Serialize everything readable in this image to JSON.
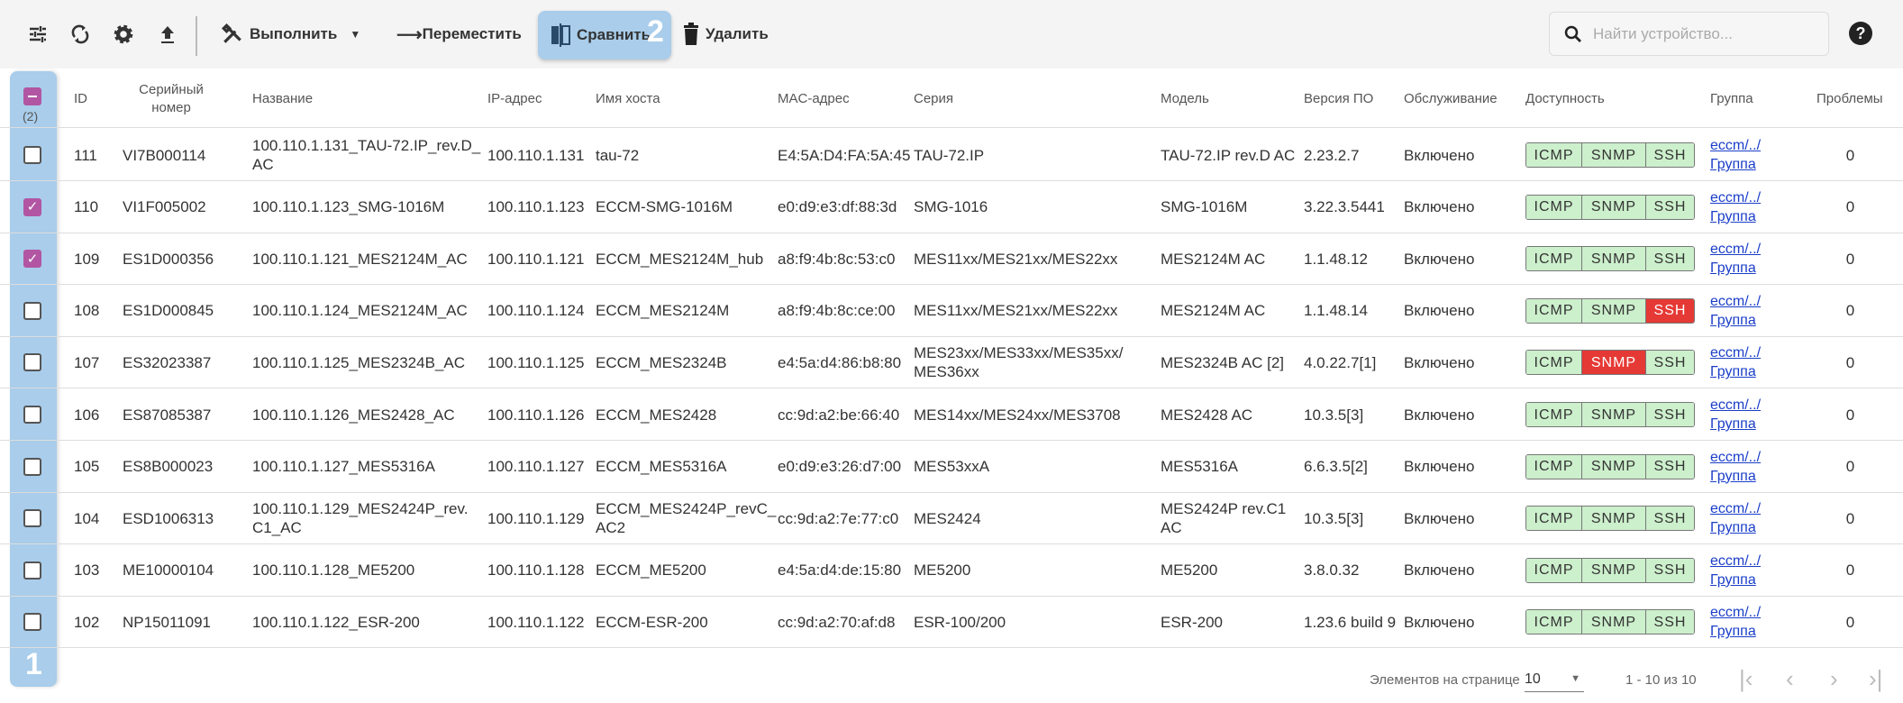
{
  "toolbar": {
    "run_label": "Выполнить",
    "move_label": "Переместить",
    "compare_label": "Сравнить",
    "delete_label": "Удалить",
    "search_placeholder": "Найти устройство...",
    "annotation_compare": "2"
  },
  "columns": {
    "id": "ID",
    "serial": "Серийный номер",
    "name": "Название",
    "ip": "IP-адрес",
    "host": "Имя хоста",
    "mac": "MAC-адрес",
    "series": "Серия",
    "model": "Модель",
    "version": "Версия ПО",
    "service": "Обслуживание",
    "access": "Доступность",
    "group": "Группа",
    "problems": "Проблемы"
  },
  "selected_count": "(2)",
  "annotation_column": "1",
  "colors": {
    "ok": "#ccefcc",
    "fail": "#e53935",
    "checkbox": "#b256a3",
    "highlight": "#a9cdeb"
  },
  "rows": [
    {
      "checked": false,
      "id": "111",
      "serial": "VI7B000114",
      "name": "100.110.1.131_TAU-72.IP_rev.D_ AC",
      "ip": "100.110.1.131",
      "host": "tau-72",
      "mac": "E4:5A:D4:FA:5A:45",
      "series": "TAU-72.IP",
      "model": "TAU-72.IP rev.D AC",
      "version": "2.23.2.7",
      "service": "Включено",
      "access": {
        "ICMP": "ok",
        "SNMP": "ok",
        "SSH": "ok"
      },
      "group": "eccm/../ Группа",
      "problems": "0"
    },
    {
      "checked": true,
      "id": "110",
      "serial": "VI1F005002",
      "name": "100.110.1.123_SMG-1016M",
      "ip": "100.110.1.123",
      "host": "ECCM-SMG-1016M",
      "mac": "e0:d9:e3:df:88:3d",
      "series": "SMG-1016",
      "model": "SMG-1016M",
      "version": "3.22.3.5441",
      "service": "Включено",
      "access": {
        "ICMP": "ok",
        "SNMP": "ok",
        "SSH": "ok"
      },
      "group": "eccm/../ Группа",
      "problems": "0"
    },
    {
      "checked": true,
      "id": "109",
      "serial": "ES1D000356",
      "name": "100.110.1.121_MES2124M_AC",
      "ip": "100.110.1.121",
      "host": "ECCM_MES2124M_hub",
      "mac": "a8:f9:4b:8c:53:c0",
      "series": "MES11xx/MES21xx/MES22xx",
      "model": "MES2124M AC",
      "version": "1.1.48.12",
      "service": "Включено",
      "access": {
        "ICMP": "ok",
        "SNMP": "ok",
        "SSH": "ok"
      },
      "group": "eccm/../ Группа",
      "problems": "0"
    },
    {
      "checked": false,
      "id": "108",
      "serial": "ES1D000845",
      "name": "100.110.1.124_MES2124M_AC",
      "ip": "100.110.1.124",
      "host": "ECCM_MES2124M",
      "mac": "a8:f9:4b:8c:ce:00",
      "series": "MES11xx/MES21xx/MES22xx",
      "model": "MES2124M AC",
      "version": "1.1.48.14",
      "service": "Включено",
      "access": {
        "ICMP": "ok",
        "SNMP": "ok",
        "SSH": "fail"
      },
      "group": "eccm/../ Группа",
      "problems": "0"
    },
    {
      "checked": false,
      "id": "107",
      "serial": "ES32023387",
      "name": "100.110.1.125_MES2324B_AC",
      "ip": "100.110.1.125",
      "host": "ECCM_MES2324B",
      "mac": "e4:5a:d4:86:b8:80",
      "series": "MES23xx/MES33xx/MES35xx/ MES36xx",
      "model": "MES2324B AC [2]",
      "version": "4.0.22.7[1]",
      "service": "Включено",
      "access": {
        "ICMP": "ok",
        "SNMP": "fail",
        "SSH": "ok"
      },
      "group": "eccm/../ Группа",
      "problems": "0"
    },
    {
      "checked": false,
      "id": "106",
      "serial": "ES87085387",
      "name": "100.110.1.126_MES2428_AC",
      "ip": "100.110.1.126",
      "host": "ECCM_MES2428",
      "mac": "cc:9d:a2:be:66:40",
      "series": "MES14xx/MES24xx/MES3708",
      "model": "MES2428 AC",
      "version": "10.3.5[3]",
      "service": "Включено",
      "access": {
        "ICMP": "ok",
        "SNMP": "ok",
        "SSH": "ok"
      },
      "group": "eccm/../ Группа",
      "problems": "0"
    },
    {
      "checked": false,
      "id": "105",
      "serial": "ES8B000023",
      "name": "100.110.1.127_MES5316A",
      "ip": "100.110.1.127",
      "host": "ECCM_MES5316A",
      "mac": "e0:d9:e3:26:d7:00",
      "series": "MES53xxA",
      "model": "MES5316A",
      "version": "6.6.3.5[2]",
      "service": "Включено",
      "access": {
        "ICMP": "ok",
        "SNMP": "ok",
        "SSH": "ok"
      },
      "group": "eccm/../ Группа",
      "problems": "0"
    },
    {
      "checked": false,
      "id": "104",
      "serial": "ESD1006313",
      "name": "100.110.1.129_MES2424P_rev. C1_AC",
      "ip": "100.110.1.129",
      "host": "ECCM_MES2424P_revC_ AC2",
      "mac": "cc:9d:a2:7e:77:c0",
      "series": "MES2424",
      "model": "MES2424P rev.C1 AC",
      "version": "10.3.5[3]",
      "service": "Включено",
      "access": {
        "ICMP": "ok",
        "SNMP": "ok",
        "SSH": "ok"
      },
      "group": "eccm/../ Группа",
      "problems": "0"
    },
    {
      "checked": false,
      "id": "103",
      "serial": "ME10000104",
      "name": "100.110.1.128_ME5200",
      "ip": "100.110.1.128",
      "host": "ECCM_ME5200",
      "mac": "e4:5a:d4:de:15:80",
      "series": "ME5200",
      "model": "ME5200",
      "version": "3.8.0.32",
      "service": "Включено",
      "access": {
        "ICMP": "ok",
        "SNMP": "ok",
        "SSH": "ok"
      },
      "group": "eccm/../ Группа",
      "problems": "0"
    },
    {
      "checked": false,
      "id": "102",
      "serial": "NP15011091",
      "name": "100.110.1.122_ESR-200",
      "ip": "100.110.1.122",
      "host": "ECCM-ESR-200",
      "mac": "cc:9d:a2:70:af:d8",
      "series": "ESR-100/200",
      "model": "ESR-200",
      "version": "1.23.6 build 9",
      "service": "Включено",
      "access": {
        "ICMP": "ok",
        "SNMP": "ok",
        "SSH": "ok"
      },
      "group": "eccm/../ Группа",
      "problems": "0"
    }
  ],
  "footer": {
    "per_page_label": "Элементов на странице",
    "per_page_value": "10",
    "range": "1 - 10 из 10"
  }
}
